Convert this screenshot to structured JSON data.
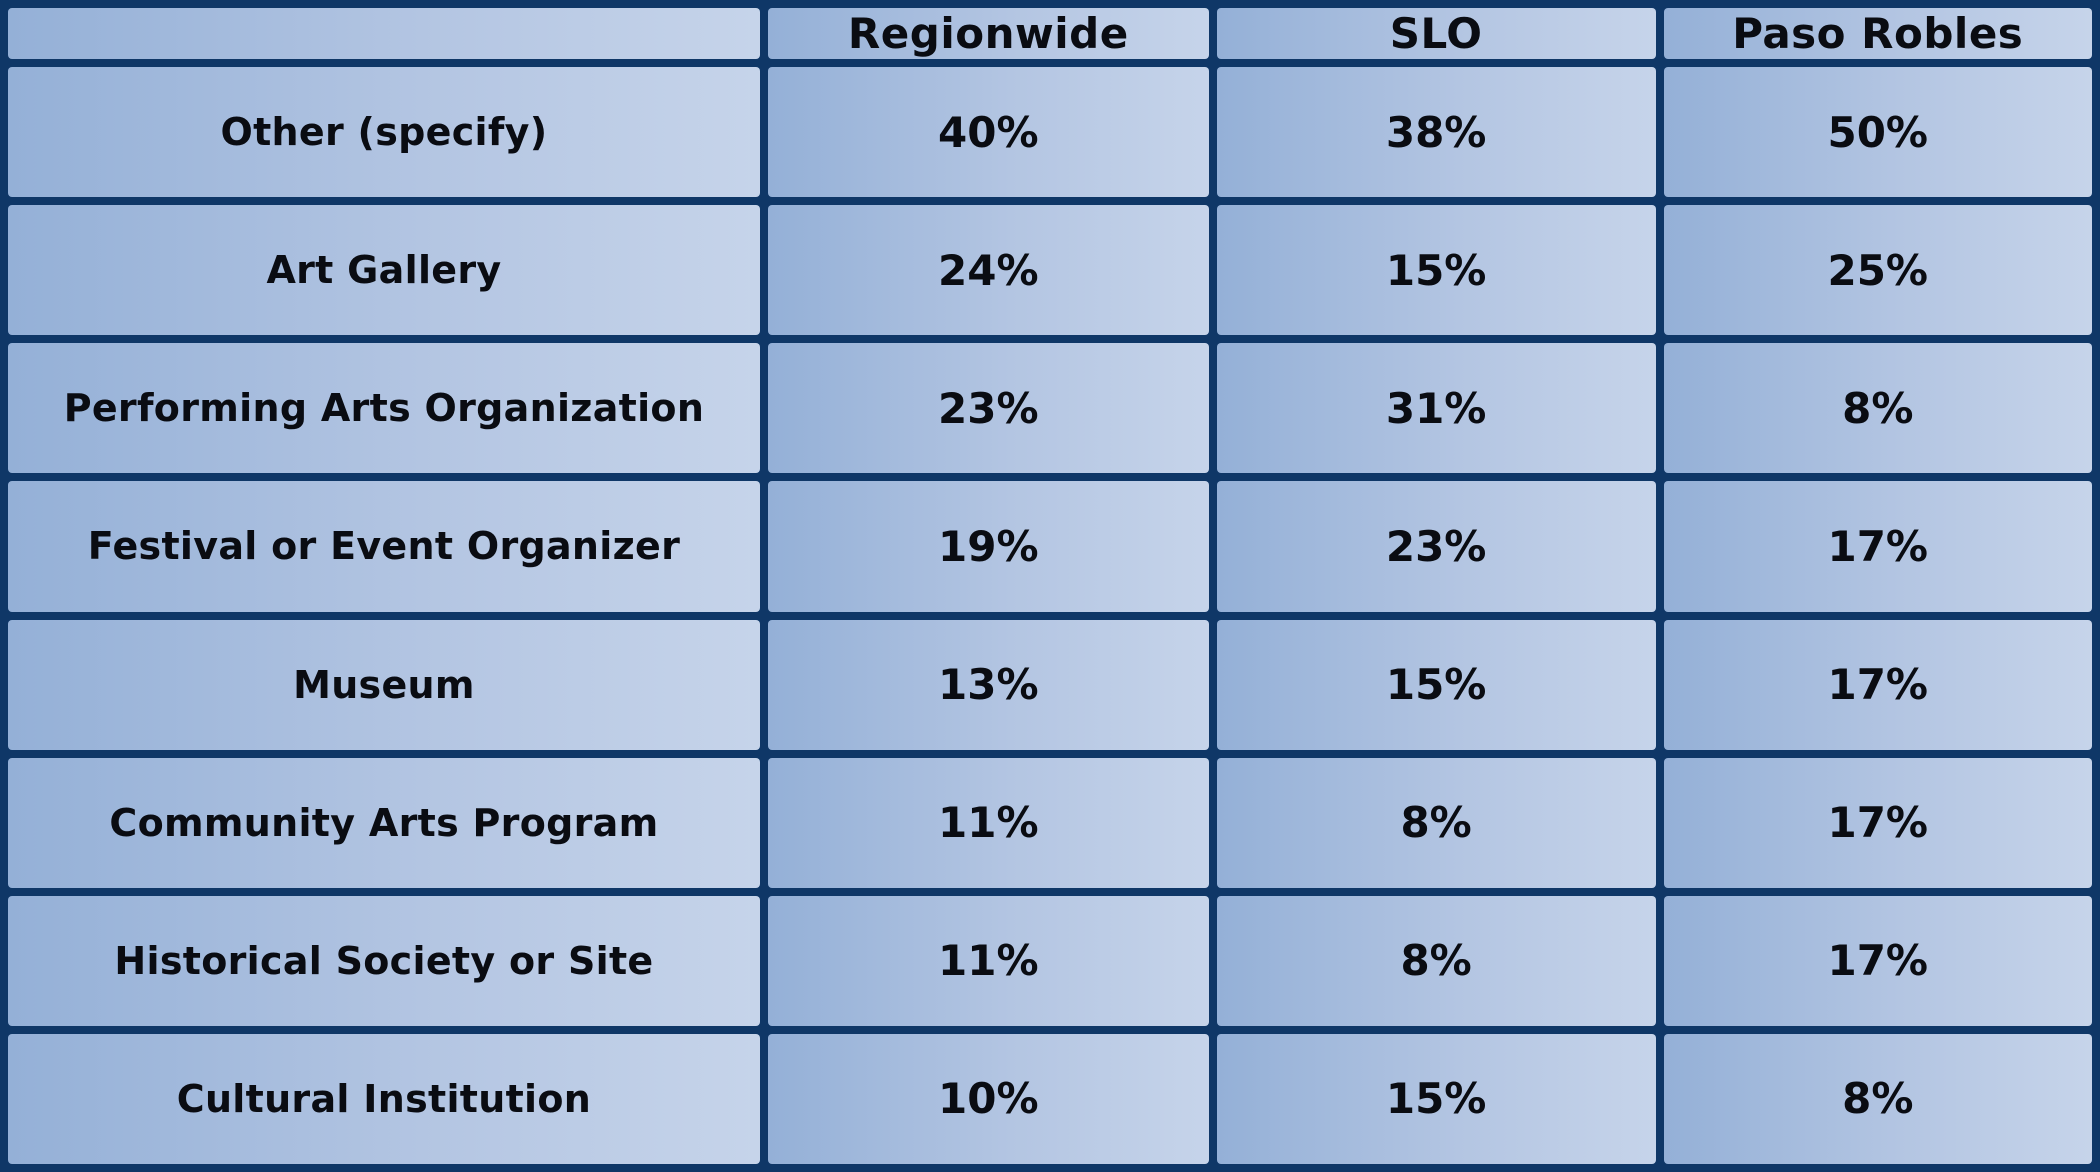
{
  "table": {
    "columns": [
      {
        "label": "",
        "name": "corner-blank"
      },
      {
        "label": "Regionwide",
        "name": "col-header-regionwide"
      },
      {
        "label": "SLO",
        "name": "col-header-slo"
      },
      {
        "label": "Paso Robles",
        "name": "col-header-paso-robles"
      }
    ],
    "rows": [
      {
        "label": "Other (specify)",
        "values": [
          "40%",
          "38%",
          "50%"
        ]
      },
      {
        "label": "Art Gallery",
        "values": [
          "24%",
          "15%",
          "25%"
        ]
      },
      {
        "label": "Performing Arts Organization",
        "values": [
          "23%",
          "31%",
          "8%"
        ]
      },
      {
        "label": "Festival or Event Organizer",
        "values": [
          "19%",
          "23%",
          "17%"
        ]
      },
      {
        "label": "Museum",
        "values": [
          "13%",
          "15%",
          "17%"
        ]
      },
      {
        "label": "Community Arts Program",
        "values": [
          "11%",
          "8%",
          "17%"
        ]
      },
      {
        "label": "Historical Society or Site",
        "values": [
          "11%",
          "8%",
          "17%"
        ]
      },
      {
        "label": "Cultural Institution",
        "values": [
          "10%",
          "15%",
          "8%"
        ]
      }
    ]
  },
  "colors": {
    "grid_border_navy": "#0f3767",
    "cell_gradient_left": "#94b0d7",
    "cell_gradient_right": "#c6d4ea",
    "text": "#0a0c12"
  },
  "chart_data": {
    "type": "table",
    "title": "",
    "categories": [
      "Other (specify)",
      "Art Gallery",
      "Performing Arts Organization",
      "Festival or Event Organizer",
      "Museum",
      "Community Arts Program",
      "Historical Society or Site",
      "Cultural Institution"
    ],
    "series": [
      {
        "name": "Regionwide",
        "values": [
          40,
          24,
          23,
          19,
          13,
          11,
          11,
          10
        ]
      },
      {
        "name": "SLO",
        "values": [
          38,
          15,
          31,
          23,
          15,
          8,
          8,
          15
        ]
      },
      {
        "name": "Paso Robles",
        "values": [
          50,
          25,
          8,
          17,
          17,
          17,
          17,
          8
        ]
      }
    ],
    "units": "percent",
    "layout": "rows are organization types, columns are geographic segments"
  }
}
